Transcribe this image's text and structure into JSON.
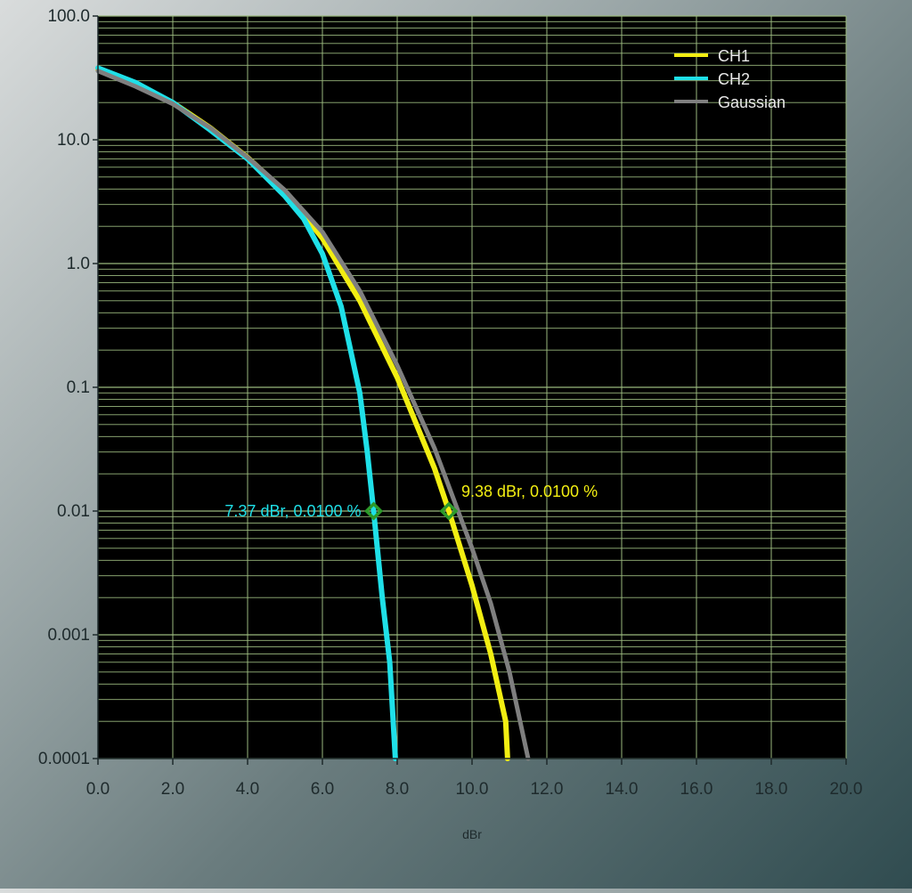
{
  "chart_data": {
    "type": "line",
    "title": "",
    "xlabel": "dBr",
    "ylabel": "",
    "xlim": [
      0,
      20
    ],
    "ylim": [
      0.0001,
      100
    ],
    "y_scale": "log",
    "grid": true,
    "legend_position": "top-right",
    "x_tick_labels": [
      "0.0",
      "2.0",
      "4.0",
      "6.0",
      "8.0",
      "10.0",
      "12.0",
      "14.0",
      "16.0",
      "18.0",
      "20.0"
    ],
    "y_tick_labels": [
      "100.0",
      "10.0",
      "1.0",
      "0.1",
      "0.01",
      "0.001",
      "0.0001"
    ],
    "colors": {
      "plot_background": "#000000",
      "grid": "#9ab87e",
      "axis_text": "#1e2a2c"
    },
    "series": [
      {
        "name": "CH1",
        "color": "#f2ee12",
        "points": [
          [
            0,
            37
          ],
          [
            1,
            28
          ],
          [
            2,
            20
          ],
          [
            3,
            12.5
          ],
          [
            4,
            7.2
          ],
          [
            5,
            3.8
          ],
          [
            6,
            1.6
          ],
          [
            7,
            0.5
          ],
          [
            8,
            0.12
          ],
          [
            9,
            0.022
          ],
          [
            9.38,
            0.01
          ],
          [
            10,
            0.0025
          ],
          [
            10.5,
            0.0007
          ],
          [
            10.9,
            0.0002
          ],
          [
            10.95,
            0.0001
          ]
        ]
      },
      {
        "name": "CH2",
        "color": "#1fe0e8",
        "points": [
          [
            0,
            38
          ],
          [
            1,
            29
          ],
          [
            2,
            20
          ],
          [
            3,
            12
          ],
          [
            4,
            7
          ],
          [
            5,
            3.5
          ],
          [
            5.5,
            2.3
          ],
          [
            6,
            1.2
          ],
          [
            6.5,
            0.45
          ],
          [
            7,
            0.09
          ],
          [
            7.2,
            0.03
          ],
          [
            7.37,
            0.01
          ],
          [
            7.6,
            0.002
          ],
          [
            7.8,
            0.0006
          ],
          [
            7.95,
            0.0001
          ]
        ]
      },
      {
        "name": "Gaussian",
        "color": "#7f7f7f",
        "points": [
          [
            0,
            36
          ],
          [
            1,
            27
          ],
          [
            2,
            19.5
          ],
          [
            3,
            12.5
          ],
          [
            4,
            7.2
          ],
          [
            5,
            3.9
          ],
          [
            6,
            1.8
          ],
          [
            7,
            0.6
          ],
          [
            8,
            0.15
          ],
          [
            9,
            0.032
          ],
          [
            10,
            0.005
          ],
          [
            10.5,
            0.0018
          ],
          [
            11,
            0.0005
          ],
          [
            11.5,
            0.0001
          ]
        ]
      }
    ],
    "annotations": [
      {
        "text": "7.37 dBr, 0.0100 %",
        "x": 7.37,
        "y": 0.01,
        "color": "#1fe0e8",
        "side": "left"
      },
      {
        "text": "9.38 dBr, 0.0100 %",
        "x": 9.38,
        "y": 0.01,
        "color": "#f2ee12",
        "side": "right"
      }
    ]
  }
}
